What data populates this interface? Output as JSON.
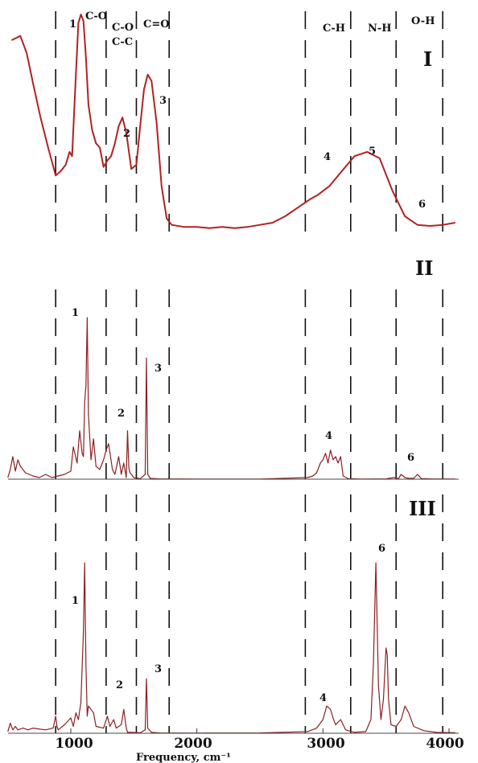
{
  "chart_data": {
    "type": "line",
    "x_range": [
      500,
      4050
    ],
    "x_ticks": [
      "1000",
      "2000",
      "3000",
      "4000"
    ],
    "xlabel": "Frequency, cm⁻¹",
    "band_labels": [
      "C-O",
      "C-O",
      "C-C",
      "C=O",
      "C-H",
      "N-H",
      "O-H"
    ],
    "separators_cm": [
      880,
      1280,
      1520,
      1780,
      2860,
      3220,
      3580,
      3950
    ],
    "series": [
      {
        "name": "I",
        "color": "#b22222",
        "x": [
          530,
          600,
          650,
          700,
          760,
          820,
          880,
          920,
          960,
          990,
          1010,
          1040,
          1060,
          1080,
          1100,
          1120,
          1140,
          1170,
          1200,
          1230,
          1260,
          1290,
          1320,
          1350,
          1380,
          1410,
          1440,
          1480,
          1520,
          1550,
          1580,
          1610,
          1640,
          1680,
          1720,
          1760,
          1800,
          1900,
          2000,
          2100,
          2200,
          2300,
          2400,
          2500,
          2600,
          2700,
          2800,
          2900,
          2960,
          3050,
          3150,
          3250,
          3350,
          3450,
          3550,
          3650,
          3750,
          3850,
          3950,
          4050
        ],
        "y": [
          88,
          90,
          82,
          68,
          52,
          38,
          25,
          27,
          30,
          36,
          34,
          72,
          96,
          100,
          97,
          80,
          58,
          46,
          40,
          38,
          29,
          32,
          34,
          40,
          48,
          52,
          45,
          28,
          30,
          48,
          65,
          72,
          69,
          50,
          20,
          5,
          2,
          1,
          1,
          0.5,
          1,
          0.5,
          1,
          2,
          3,
          6,
          10,
          14,
          16,
          20,
          27,
          34,
          36,
          33,
          18,
          6,
          2,
          1.5,
          2,
          3
        ]
      },
      {
        "name": "II",
        "color": "#8b2020",
        "x": [
          500,
          520,
          540,
          560,
          580,
          600,
          640,
          700,
          750,
          800,
          850,
          900,
          950,
          1000,
          1020,
          1050,
          1070,
          1090,
          1100,
          1110,
          1120,
          1130,
          1140,
          1160,
          1180,
          1200,
          1230,
          1260,
          1280,
          1300,
          1330,
          1350,
          1380,
          1400,
          1420,
          1440,
          1450,
          1460,
          1470,
          1500,
          1550,
          1590,
          1600,
          1610,
          1630,
          1700,
          2000,
          2500,
          2880,
          2920,
          2950,
          2980,
          3000,
          3020,
          3040,
          3060,
          3080,
          3100,
          3120,
          3140,
          3160,
          3200,
          3300,
          3500,
          3560,
          3600,
          3620,
          3650,
          3680,
          3720,
          3750,
          3780,
          3850,
          4050
        ],
        "y": [
          1,
          6,
          14,
          5,
          12,
          8,
          4,
          2,
          1,
          3,
          1,
          2,
          3,
          5,
          20,
          10,
          30,
          16,
          14,
          48,
          58,
          100,
          40,
          12,
          25,
          8,
          6,
          12,
          18,
          22,
          6,
          3,
          14,
          3,
          10,
          1,
          30,
          7,
          4,
          1,
          0.3,
          3,
          75,
          3,
          0.5,
          0.2,
          0.1,
          0.1,
          1,
          2,
          4,
          10,
          12,
          16,
          10,
          18,
          12,
          14,
          10,
          14,
          2,
          0.3,
          0.1,
          0.2,
          1,
          0.4,
          3,
          1,
          0.5,
          0.5,
          3,
          0.4,
          0.2,
          0.1
        ]
      },
      {
        "name": "III",
        "color": "#8b2020",
        "x": [
          500,
          520,
          540,
          560,
          580,
          620,
          660,
          700,
          800,
          860,
          880,
          890,
          900,
          950,
          1000,
          1020,
          1040,
          1060,
          1080,
          1100,
          1110,
          1120,
          1130,
          1140,
          1160,
          1180,
          1200,
          1260,
          1290,
          1310,
          1340,
          1360,
          1400,
          1420,
          1440,
          1450,
          1480,
          1550,
          1590,
          1600,
          1610,
          1640,
          1700,
          2000,
          2500,
          2880,
          2950,
          3000,
          3030,
          3060,
          3080,
          3100,
          3140,
          3180,
          3250,
          3340,
          3380,
          3400,
          3420,
          3440,
          3460,
          3480,
          3500,
          3510,
          3520,
          3540,
          3580,
          3620,
          3650,
          3680,
          3720,
          3800,
          3900,
          4050
        ],
        "y": [
          1,
          6,
          2,
          4,
          2,
          3,
          2,
          3,
          2,
          3,
          10,
          4,
          2,
          5,
          9,
          4,
          12,
          8,
          18,
          60,
          100,
          40,
          10,
          16,
          14,
          12,
          4,
          3,
          10,
          4,
          8,
          3,
          5,
          14,
          3,
          0.5,
          0.5,
          0.3,
          2,
          32,
          3,
          0.5,
          0.2,
          0.1,
          0.2,
          1,
          3,
          8,
          16,
          14,
          9,
          5,
          8,
          2,
          0.5,
          1,
          8,
          40,
          100,
          28,
          8,
          20,
          50,
          46,
          20,
          5,
          4,
          8,
          16,
          12,
          4,
          1.5,
          0.5,
          0.3
        ]
      }
    ],
    "annotations": [
      {
        "series": "I",
        "labels": [
          "1",
          "2",
          "3",
          "4",
          "5",
          "6"
        ]
      },
      {
        "series": "II",
        "labels": [
          "1",
          "2",
          "3",
          "4",
          "6"
        ]
      },
      {
        "series": "III",
        "labels": [
          "1",
          "2",
          "3",
          "4",
          "6"
        ]
      }
    ],
    "grid": false,
    "legend": "none"
  }
}
